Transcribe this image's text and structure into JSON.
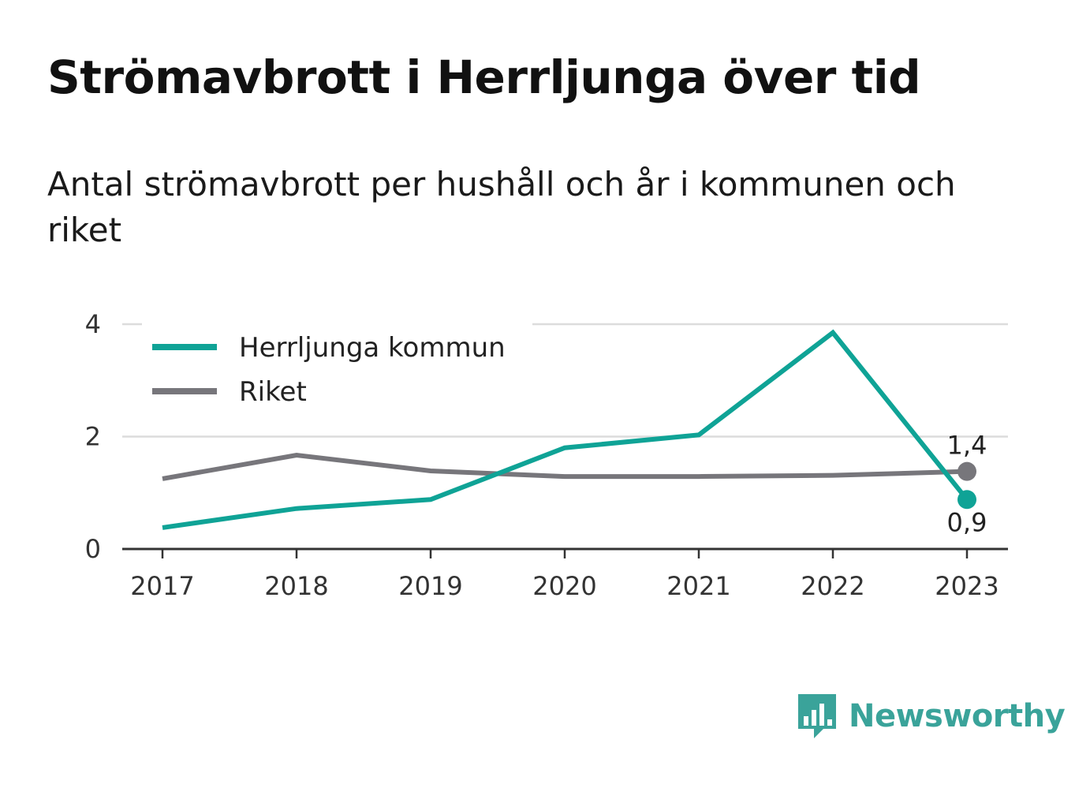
{
  "title": "Strömavbrott i Herrljunga över tid",
  "subtitle": "Antal strömavbrott per hushåll och år i kommunen och riket",
  "brand": {
    "name": "Newsworthy",
    "icon": "newsworthy-logo-icon",
    "color": "#3aa39a"
  },
  "chart_data": {
    "type": "line",
    "x": [
      "2017",
      "2018",
      "2019",
      "2020",
      "2021",
      "2022",
      "2023"
    ],
    "ylim": [
      0,
      4
    ],
    "yticks": [
      "0",
      "2",
      "4"
    ],
    "grid": true,
    "legend_position": "top-left",
    "series": [
      {
        "name": "Herrljunga kommun",
        "color": "#0fa396",
        "values": [
          0.38,
          0.72,
          0.88,
          1.8,
          2.03,
          3.85,
          0.88
        ],
        "end_label": "0,9"
      },
      {
        "name": "Riket",
        "color": "#77767b",
        "values": [
          1.25,
          1.67,
          1.39,
          1.29,
          1.29,
          1.31,
          1.38
        ],
        "end_label": "1,4"
      }
    ]
  }
}
